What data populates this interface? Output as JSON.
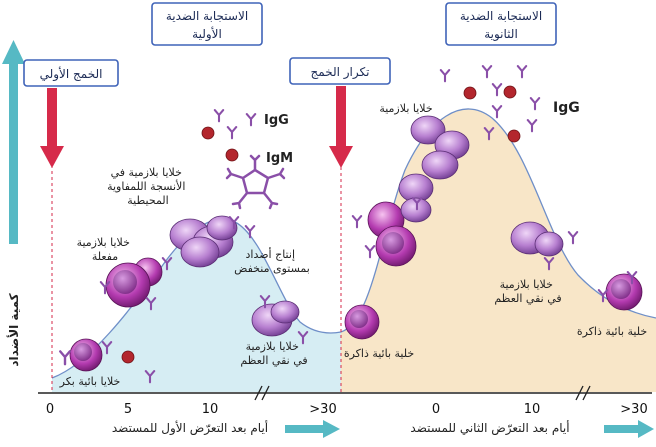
{
  "y_axis_label": "كمية الأضداد",
  "phases": {
    "primary_response": [
      "الاستجابة الضدية",
      "الأولية"
    ],
    "secondary_response": [
      "الاستجابة الضدية",
      "الثانوية"
    ]
  },
  "events": {
    "primary_immunization": "الخمج الأولي",
    "repeat_infection": "تكرار الخمج"
  },
  "antibody_labels": {
    "igg_primary": "IgG",
    "igm": "IgM",
    "igg_secondary": "IgG"
  },
  "cell_labels": {
    "virgin_b_cell": [
      "خلايا بائية بكر"
    ],
    "activated_plasma": [
      "خلايا بلازمية",
      "مفعلة"
    ],
    "plasma_lymphoid": [
      "خلايا بلازمية في",
      "الأنسجة اللمفاوية",
      "المحيطية"
    ],
    "low_production": [
      "إنتاج أضداد",
      "بمستوى منخفض"
    ],
    "plasma_marrow_primary": [
      "خلايا بلازمية",
      "في نقي العظم"
    ],
    "memory_b_cell_left": [
      "خلية بائية ذاكرة"
    ],
    "plasma_secondary": [
      "خلايا بلازمية"
    ],
    "plasma_marrow_secondary": [
      "خلايا بلازمية",
      "في نقي العظم"
    ],
    "memory_b_cell_right": [
      "خلية بائية ذاكرة"
    ]
  },
  "x_axis": {
    "primary_ticks": [
      "0",
      "5",
      "10",
      ">30"
    ],
    "secondary_ticks": [
      "0",
      "10",
      ">30"
    ],
    "primary_label": "أيام بعد التعرّض الأول للمستضد",
    "secondary_label": "أيام بعد التعرّض الثاني للمستضد"
  },
  "colors": {
    "primary_fill": "#d6edf3",
    "secondary_fill": "#f8e6c8",
    "curve": "#6f8fc8",
    "arrow_red": "#d62a4a",
    "axis_teal": "#56b9c4",
    "box_border": "#3f63b8",
    "plasma_cell": "#a85fc0",
    "b_cell": "#b43bb0",
    "antibody": "#8a4fa8",
    "antigen": "#b3262d"
  }
}
